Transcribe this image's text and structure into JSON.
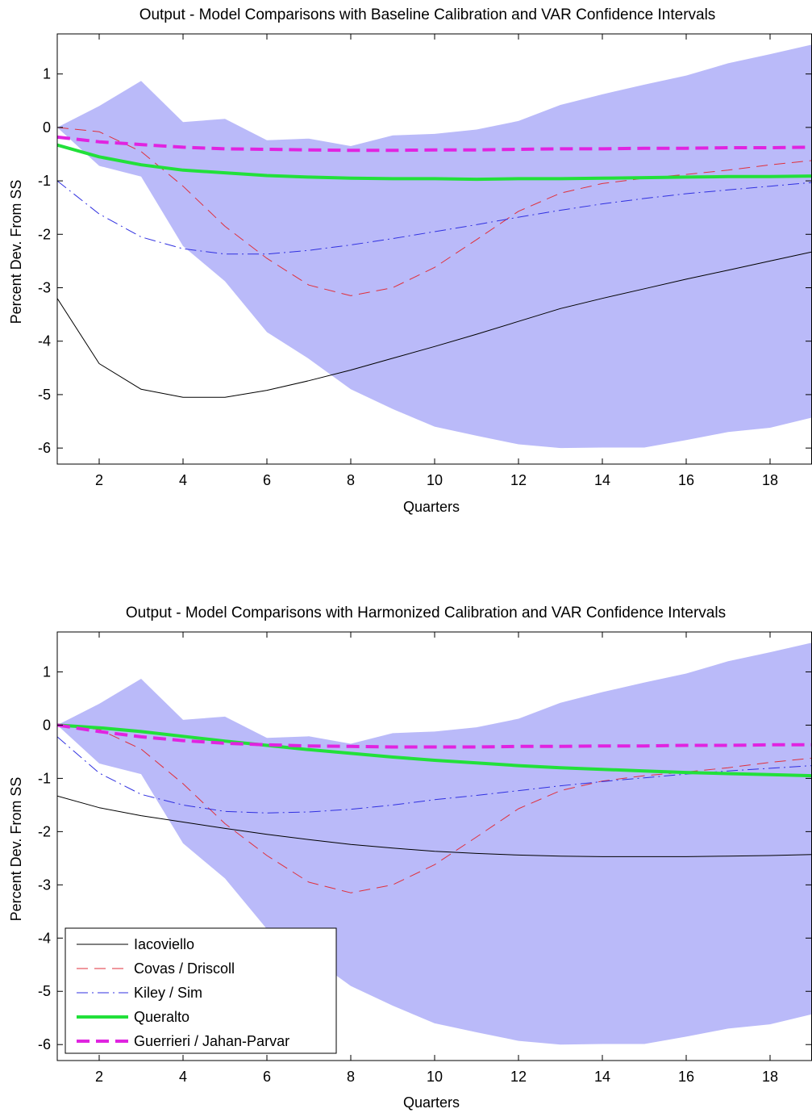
{
  "chart_data": [
    {
      "type": "line",
      "title": "Output - Model Comparisons with Baseline Calibration and VAR Confidence Intervals",
      "xlabel": "Quarters",
      "ylabel": "Percent Dev. From SS",
      "xlim": [
        1,
        19
      ],
      "ylim": [
        -6.3,
        1.75
      ],
      "xticks": [
        2,
        4,
        6,
        8,
        10,
        12,
        14,
        16,
        18
      ],
      "yticks": [
        1,
        0,
        -1,
        -2,
        -3,
        -4,
        -5,
        -6
      ],
      "x": [
        1,
        2,
        3,
        4,
        5,
        6,
        7,
        8,
        9,
        10,
        11,
        12,
        13,
        14,
        15,
        16,
        17,
        18,
        19
      ],
      "band": {
        "name": "VAR Confidence Intervals",
        "color": "#babaf9",
        "upper": [
          0,
          0.4,
          0.87,
          0.1,
          0.16,
          -0.24,
          -0.21,
          -0.35,
          -0.15,
          -0.12,
          -0.04,
          0.12,
          0.42,
          0.62,
          0.8,
          0.97,
          1.2,
          1.37,
          1.55
        ],
        "lower": [
          0,
          -0.72,
          -0.92,
          -2.22,
          -2.88,
          -3.83,
          -4.33,
          -4.9,
          -5.27,
          -5.6,
          -5.77,
          -5.93,
          -6.0,
          -5.99,
          -5.99,
          -5.85,
          -5.7,
          -5.62,
          -5.43
        ]
      },
      "series": [
        {
          "name": "Iacoviello",
          "color": "#000000",
          "width": 1,
          "dash": "",
          "values": [
            -3.2,
            -4.42,
            -4.9,
            -5.05,
            -5.05,
            -4.92,
            -4.74,
            -4.54,
            -4.32,
            -4.1,
            -3.87,
            -3.63,
            -3.39,
            -3.2,
            -3.02,
            -2.84,
            -2.67,
            -2.5,
            -2.33
          ]
        },
        {
          "name": "Covas / Driscoll",
          "color": "#e0303b",
          "width": 1,
          "dash": "14 8",
          "values": [
            0,
            -0.08,
            -0.45,
            -1.1,
            -1.85,
            -2.45,
            -2.95,
            -3.15,
            -3.0,
            -2.62,
            -2.1,
            -1.57,
            -1.23,
            -1.05,
            -0.95,
            -0.88,
            -0.8,
            -0.7,
            -0.62
          ]
        },
        {
          "name": "Kiley / Sim",
          "color": "#3030e0",
          "width": 1,
          "dash": "14 5 2 5",
          "values": [
            -1.0,
            -1.62,
            -2.05,
            -2.27,
            -2.37,
            -2.37,
            -2.3,
            -2.2,
            -2.08,
            -1.95,
            -1.82,
            -1.68,
            -1.55,
            -1.43,
            -1.33,
            -1.24,
            -1.17,
            -1.1,
            -1.03
          ]
        },
        {
          "name": "Queralto",
          "color": "#22e03a",
          "width": 4,
          "dash": "",
          "values": [
            -0.33,
            -0.55,
            -0.7,
            -0.8,
            -0.85,
            -0.9,
            -0.93,
            -0.95,
            -0.96,
            -0.96,
            -0.97,
            -0.96,
            -0.96,
            -0.95,
            -0.94,
            -0.93,
            -0.92,
            -0.92,
            -0.91
          ]
        },
        {
          "name": "Guerrieri / Jahan-Parvar",
          "color": "#e024e0",
          "width": 4,
          "dash": "16 8",
          "values": [
            -0.18,
            -0.27,
            -0.32,
            -0.37,
            -0.4,
            -0.41,
            -0.42,
            -0.43,
            -0.43,
            -0.42,
            -0.42,
            -0.41,
            -0.4,
            -0.4,
            -0.39,
            -0.39,
            -0.38,
            -0.38,
            -0.37
          ]
        }
      ]
    },
    {
      "type": "line",
      "title": "Output - Model Comparisons with Harmonized Calibration and VAR Confidence Intervals",
      "xlabel": "Quarters",
      "ylabel": "Percent Dev. From SS",
      "xlim": [
        1,
        19
      ],
      "ylim": [
        -6.3,
        1.75
      ],
      "xticks": [
        2,
        4,
        6,
        8,
        10,
        12,
        14,
        16,
        18
      ],
      "yticks": [
        1,
        0,
        -1,
        -2,
        -3,
        -4,
        -5,
        -6
      ],
      "x": [
        1,
        2,
        3,
        4,
        5,
        6,
        7,
        8,
        9,
        10,
        11,
        12,
        13,
        14,
        15,
        16,
        17,
        18,
        19
      ],
      "band": {
        "name": "VAR Confidence Intervals",
        "color": "#babaf9",
        "upper": [
          0,
          0.4,
          0.87,
          0.1,
          0.16,
          -0.24,
          -0.21,
          -0.35,
          -0.15,
          -0.12,
          -0.04,
          0.12,
          0.42,
          0.62,
          0.8,
          0.97,
          1.2,
          1.37,
          1.55
        ],
        "lower": [
          0,
          -0.72,
          -0.92,
          -2.22,
          -2.88,
          -3.83,
          -4.33,
          -4.9,
          -5.27,
          -5.6,
          -5.77,
          -5.93,
          -6.0,
          -5.99,
          -5.99,
          -5.85,
          -5.7,
          -5.62,
          -5.43
        ]
      },
      "series": [
        {
          "name": "Iacoviello",
          "color": "#000000",
          "width": 1,
          "dash": "",
          "values": [
            -1.33,
            -1.55,
            -1.7,
            -1.82,
            -1.94,
            -2.05,
            -2.15,
            -2.24,
            -2.31,
            -2.37,
            -2.41,
            -2.44,
            -2.46,
            -2.47,
            -2.47,
            -2.47,
            -2.46,
            -2.45,
            -2.43
          ]
        },
        {
          "name": "Covas / Driscoll",
          "color": "#e0303b",
          "width": 1,
          "dash": "14 8",
          "values": [
            0,
            -0.08,
            -0.45,
            -1.1,
            -1.85,
            -2.45,
            -2.95,
            -3.15,
            -3.0,
            -2.62,
            -2.1,
            -1.57,
            -1.23,
            -1.05,
            -0.95,
            -0.88,
            -0.8,
            -0.7,
            -0.62
          ]
        },
        {
          "name": "Kiley / Sim",
          "color": "#3030e0",
          "width": 1,
          "dash": "14 5 2 5",
          "values": [
            -0.22,
            -0.9,
            -1.3,
            -1.5,
            -1.62,
            -1.65,
            -1.63,
            -1.58,
            -1.5,
            -1.4,
            -1.32,
            -1.23,
            -1.14,
            -1.06,
            -0.99,
            -0.92,
            -0.86,
            -0.81,
            -0.76
          ]
        },
        {
          "name": "Queralto",
          "color": "#22e03a",
          "width": 4,
          "dash": "",
          "values": [
            0,
            -0.05,
            -0.12,
            -0.21,
            -0.3,
            -0.38,
            -0.46,
            -0.53,
            -0.6,
            -0.66,
            -0.71,
            -0.76,
            -0.8,
            -0.83,
            -0.86,
            -0.89,
            -0.91,
            -0.93,
            -0.95
          ]
        },
        {
          "name": "Guerrieri / Jahan-Parvar",
          "color": "#e024e0",
          "width": 4,
          "dash": "16 8",
          "values": [
            0,
            -0.12,
            -0.22,
            -0.29,
            -0.34,
            -0.37,
            -0.39,
            -0.4,
            -0.41,
            -0.41,
            -0.41,
            -0.4,
            -0.4,
            -0.39,
            -0.39,
            -0.38,
            -0.38,
            -0.37,
            -0.37
          ]
        }
      ],
      "legend": {
        "placement": "bottom-left",
        "entries": [
          "Iacoviello",
          "Covas / Driscoll",
          "Kiley / Sim",
          "Queralto",
          "Guerrieri / Jahan-Parvar"
        ]
      }
    }
  ]
}
